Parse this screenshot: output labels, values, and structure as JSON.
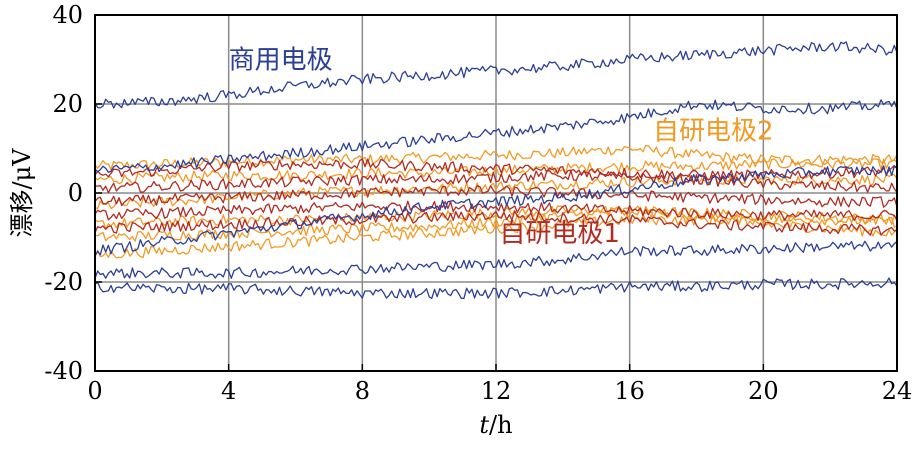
{
  "chart_data": {
    "type": "line",
    "xlabel_italic": "t",
    "xlabel_unit": "/h",
    "ylabel": "漂移/μV",
    "xlim": [
      0,
      24
    ],
    "ylim": [
      -40,
      40
    ],
    "xticks": [
      0,
      4,
      8,
      12,
      16,
      20,
      24
    ],
    "yticks": [
      -40,
      -20,
      0,
      20,
      40
    ],
    "grid": true,
    "colors": {
      "commercial": "#2b3f98",
      "self1": "#b22a22",
      "self2": "#f39a24",
      "grid": "#8a8a8a"
    },
    "annotations": [
      {
        "text": "商用电极",
        "group": "commercial",
        "x": 4,
        "y": 28
      },
      {
        "text": "自研电极2",
        "group": "self2",
        "x": 16.7,
        "y": 12
      },
      {
        "text": "自研电极1",
        "group": "self1",
        "x": 12.1,
        "y": -11
      }
    ],
    "series": [
      {
        "group": "commercial",
        "x": [
          0,
          2,
          4,
          6,
          8,
          10,
          12,
          14,
          16,
          18,
          20,
          22,
          24
        ],
        "y": [
          20,
          20.5,
          22,
          24,
          25.5,
          26.5,
          27.5,
          28.5,
          30,
          31,
          32,
          33,
          32
        ]
      },
      {
        "group": "commercial",
        "x": [
          0,
          2,
          4,
          6,
          8,
          10,
          12,
          14,
          16,
          18,
          20,
          22,
          24
        ],
        "y": [
          5,
          6,
          7.5,
          9,
          10.5,
          12,
          13.5,
          15,
          17,
          20,
          19,
          19,
          20
        ]
      },
      {
        "group": "commercial",
        "x": [
          0,
          2,
          4,
          6,
          8,
          10,
          12,
          14,
          16,
          18,
          20,
          22,
          24
        ],
        "y": [
          -13,
          -11,
          -9,
          -7,
          -5,
          -3,
          -2,
          -1,
          1,
          3,
          4,
          5,
          5
        ]
      },
      {
        "group": "commercial",
        "x": [
          0,
          2,
          4,
          6,
          8,
          10,
          12,
          14,
          16,
          18,
          20,
          22,
          24
        ],
        "y": [
          -18,
          -18,
          -18,
          -17.5,
          -17,
          -16.5,
          -16,
          -15,
          -13,
          -13,
          -12.5,
          -12,
          -12
        ]
      },
      {
        "group": "commercial",
        "x": [
          0,
          2,
          4,
          6,
          8,
          10,
          12,
          14,
          16,
          18,
          20,
          22,
          24
        ],
        "y": [
          -21,
          -21.5,
          -21.5,
          -22,
          -22.5,
          -22.5,
          -22.5,
          -22,
          -21,
          -21,
          -20.5,
          -20.5,
          -20
        ]
      },
      {
        "group": "self1",
        "x": [
          0,
          2,
          4,
          6,
          8,
          10,
          12,
          14,
          16,
          18,
          20,
          22,
          24
        ],
        "y": [
          4,
          5,
          6,
          6.5,
          6.5,
          6,
          5.5,
          5,
          4.5,
          4,
          4,
          4.5,
          5
        ]
      },
      {
        "group": "self1",
        "x": [
          0,
          2,
          4,
          6,
          8,
          10,
          12,
          14,
          16,
          18,
          20,
          22,
          24
        ],
        "y": [
          1,
          1.5,
          2,
          2.5,
          3,
          3,
          3.5,
          4,
          3.5,
          3,
          2,
          1.5,
          1
        ]
      },
      {
        "group": "self1",
        "x": [
          0,
          2,
          4,
          6,
          8,
          10,
          12,
          14,
          16,
          18,
          20,
          22,
          24
        ],
        "y": [
          -2,
          -1.5,
          -1,
          -0.5,
          0,
          0.5,
          0.5,
          0,
          -0.5,
          -1,
          -1.5,
          -2,
          -2
        ]
      },
      {
        "group": "self1",
        "x": [
          0,
          2,
          4,
          6,
          8,
          10,
          12,
          14,
          16,
          18,
          20,
          22,
          24
        ],
        "y": [
          -5,
          -4.5,
          -4,
          -3.5,
          -3,
          -3,
          -3,
          -3.5,
          -4,
          -4.5,
          -5,
          -5,
          -5
        ]
      },
      {
        "group": "self1",
        "x": [
          0,
          2,
          4,
          6,
          8,
          10,
          12,
          14,
          16,
          18,
          20,
          22,
          24
        ],
        "y": [
          -8,
          -7.5,
          -7,
          -6.5,
          -6,
          -5.5,
          -5,
          -5.5,
          -6,
          -7,
          -7.5,
          -8,
          -8.5
        ]
      },
      {
        "group": "self2",
        "x": [
          0,
          2,
          4,
          6,
          8,
          10,
          12,
          14,
          16,
          18,
          20,
          22,
          24
        ],
        "y": [
          6,
          6.5,
          7,
          7.5,
          7.5,
          8,
          8.5,
          9,
          10,
          8.5,
          7.5,
          7.5,
          7.5
        ]
      },
      {
        "group": "self2",
        "x": [
          0,
          2,
          4,
          6,
          8,
          10,
          12,
          14,
          16,
          18,
          20,
          22,
          24
        ],
        "y": [
          3,
          3.5,
          4,
          4,
          4.5,
          4.5,
          5,
          5.5,
          6,
          6,
          6.5,
          6.5,
          6.5
        ]
      },
      {
        "group": "self2",
        "x": [
          0,
          2,
          4,
          6,
          8,
          10,
          12,
          14,
          16,
          18,
          20,
          22,
          24
        ],
        "y": [
          -3,
          -2,
          -1,
          0,
          0.5,
          1,
          1.5,
          2,
          2.5,
          3,
          3,
          3,
          3
        ]
      },
      {
        "group": "self2",
        "x": [
          0,
          2,
          4,
          6,
          8,
          10,
          12,
          14,
          16,
          18,
          20,
          22,
          24
        ],
        "y": [
          -7,
          -6.5,
          -6,
          -6,
          -5.5,
          -5,
          -4.5,
          -4,
          -4,
          -4.5,
          -5,
          -5.5,
          -6
        ]
      },
      {
        "group": "self2",
        "x": [
          0,
          2,
          4,
          6,
          8,
          10,
          12,
          14,
          16,
          18,
          20,
          22,
          24
        ],
        "y": [
          -10,
          -9.5,
          -9,
          -8.5,
          -8,
          -7.5,
          -6.5,
          -5,
          -4,
          -5,
          -7,
          -8,
          -9
        ]
      },
      {
        "group": "self2",
        "x": [
          0,
          2,
          4,
          6,
          8,
          10,
          12,
          14,
          16,
          18,
          20,
          22,
          24
        ],
        "y": [
          -14,
          -13,
          -12,
          -11,
          -10,
          -9,
          -8,
          -7,
          -6,
          -6,
          -6,
          -6,
          -6.5
        ]
      }
    ]
  }
}
